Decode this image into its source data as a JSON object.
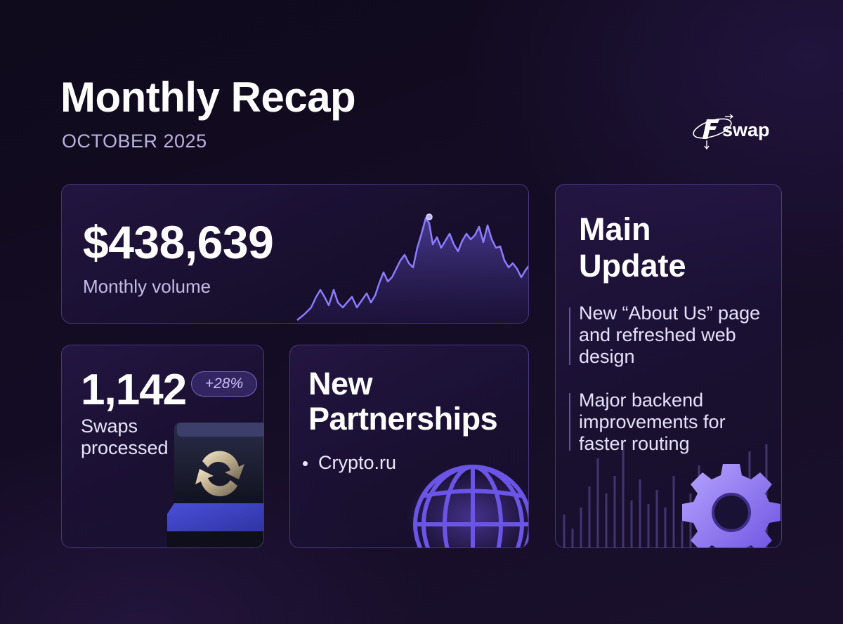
{
  "header": {
    "title": "Monthly Recap",
    "period": "OCTOBER 2025"
  },
  "brand": {
    "logo_text": "swap",
    "logo_mark": "F",
    "accent_color": "#7b6cf0"
  },
  "volume_card": {
    "value": "$438,639",
    "label": "Monthly volume"
  },
  "swaps_card": {
    "value": "1,142",
    "change_badge": "+28%",
    "label": "Swaps processed",
    "illustration": "swap-arrows-icon"
  },
  "partners_card": {
    "title": "New Partnerships",
    "items": [
      "Crypto.ru"
    ],
    "illustration": "globe-icon"
  },
  "update_card": {
    "title": "Main Update",
    "items": [
      "New “About Us” page and refreshed web design",
      "Major backend improvements for faster routing"
    ],
    "illustration": "gear-icon"
  }
}
